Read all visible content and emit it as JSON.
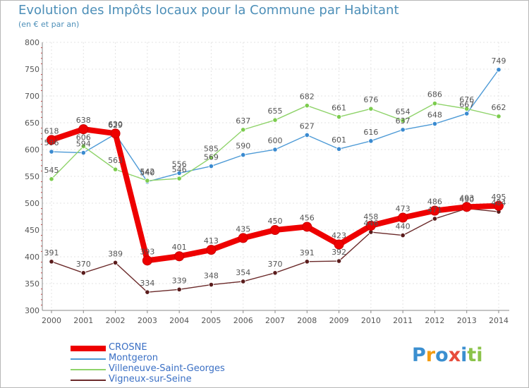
{
  "title": "Evolution des Impôts locaux pour la Commune par Habitant",
  "subtitle": "(en € et par an)",
  "logo": [
    "P",
    "r",
    "o",
    "x",
    "i",
    "t",
    "i"
  ],
  "logo_colors": [
    "#3b8fd0",
    "#f39c12",
    "#3b8fd0",
    "#e74c3c",
    "#3b8fd0",
    "#8bc34a",
    "#8bc34a"
  ],
  "chart_data": {
    "type": "line",
    "title": "Evolution des Impôts locaux pour la Commune par Habitant",
    "subtitle": "(en € et par an)",
    "xlabel": "",
    "ylabel": "",
    "ylim": [
      300,
      800
    ],
    "yticks": [
      "300",
      "350",
      "400",
      "450",
      "500",
      "550",
      "600",
      "650",
      "700",
      "750",
      "800"
    ],
    "categories": [
      "2000",
      "2001",
      "2002",
      "2003",
      "2004",
      "2005",
      "2006",
      "2007",
      "2008",
      "2009",
      "2010",
      "2011",
      "2012",
      "2013",
      "2014"
    ],
    "grid": true,
    "legend_placement": "bottom-left",
    "series": [
      {
        "name": "CROSNE",
        "color": "#ee0000",
        "values": [
          618,
          638,
          630,
          393,
          401,
          413,
          435,
          450,
          456,
          423,
          458,
          473,
          486,
          493,
          495
        ]
      },
      {
        "name": "Montgeron",
        "color": "#4d9ad6",
        "values": [
          596,
          594,
          629,
          540,
          556,
          569,
          590,
          600,
          627,
          601,
          616,
          637,
          648,
          667,
          749
        ]
      },
      {
        "name": "Villeneuve-Saint-Georges",
        "color": "#8fd36a",
        "values": [
          545,
          606,
          563,
          542,
          546,
          585,
          637,
          655,
          682,
          661,
          676,
          654,
          686,
          676,
          662
        ]
      },
      {
        "name": "Vigneux-sur-Seine",
        "color": "#6b2a2a",
        "values": [
          391,
          370,
          389,
          334,
          339,
          348,
          354,
          370,
          391,
          392,
          446,
          440,
          471,
          490,
          484
        ]
      }
    ]
  }
}
